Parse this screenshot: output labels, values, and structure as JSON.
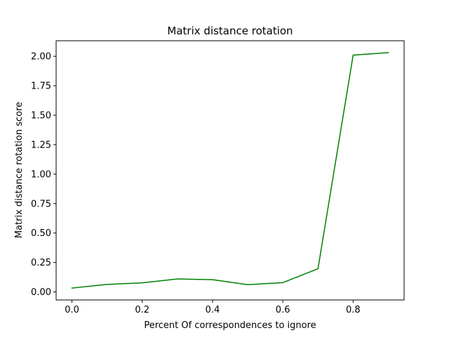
{
  "chart_data": {
    "type": "line",
    "title": "Matrix distance rotation",
    "xlabel": "Percent Of correspondences to ignore",
    "ylabel": "Matrix distance rotation score",
    "xlim": [
      -0.045,
      0.945
    ],
    "ylim": [
      -0.068,
      2.132
    ],
    "xticks": [
      0.0,
      0.2,
      0.4,
      0.6,
      0.8
    ],
    "xtick_labels": [
      "0.0",
      "0.2",
      "0.4",
      "0.6",
      "0.8"
    ],
    "yticks": [
      0.0,
      0.25,
      0.5,
      0.75,
      1.0,
      1.25,
      1.5,
      1.75,
      2.0
    ],
    "ytick_labels": [
      "0.00",
      "0.25",
      "0.50",
      "0.75",
      "1.00",
      "1.25",
      "1.50",
      "1.75",
      "2.00"
    ],
    "grid": false,
    "series": [
      {
        "color": "#008000",
        "x": [
          0.0,
          0.1,
          0.2,
          0.3,
          0.4,
          0.5,
          0.6,
          0.7,
          0.8,
          0.9
        ],
        "y": [
          0.033,
          0.064,
          0.077,
          0.11,
          0.104,
          0.062,
          0.079,
          0.197,
          2.01,
          2.031
        ]
      }
    ]
  }
}
